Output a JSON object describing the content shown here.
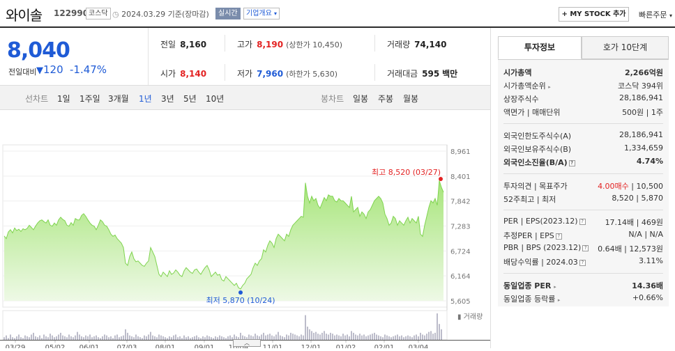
{
  "header": {
    "company_name": "와이솔",
    "code": "122990",
    "market_badge": "코스닥",
    "date_text": "2024.03.29  기준(장마감)",
    "realtime_badge": "실시간",
    "overview_label": "기업개요",
    "mystock_label": "+ MY STOCK 추가",
    "quick_order_label": "빠른주문"
  },
  "price": {
    "current": "8,040",
    "change_label": "전일대비",
    "change": "120",
    "change_pct": "-1.47%"
  },
  "stats": {
    "prev_label": "전일",
    "prev": "8,160",
    "high_label": "고가",
    "high": "8,190",
    "upper_limit": "(상한가 10,450)",
    "volume_label": "거래량",
    "volume": "74,140",
    "open_label": "시가",
    "open": "8,140",
    "low_label": "저가",
    "low": "7,960",
    "lower_limit": "(하한가 5,630)",
    "amount_label": "거래대금",
    "amount": "595",
    "amount_unit": "백만"
  },
  "tabs": {
    "line_label": "선차트",
    "line_tabs": [
      "1일",
      "1주일",
      "3개월",
      "1년",
      "3년",
      "5년",
      "10년"
    ],
    "selected": "1년",
    "candle_label": "봉차트",
    "candle_tabs": [
      "일봉",
      "주봉",
      "월봉"
    ]
  },
  "chart_data": {
    "type": "area",
    "y_ticks": [
      "8,961",
      "8,401",
      "7,842",
      "7,283",
      "6,724",
      "6,164",
      "5,605"
    ],
    "ylim": [
      5605,
      8961
    ],
    "x_ticks": [
      "03/29",
      "05/02",
      "06/01",
      "07/03",
      "08/01",
      "09/01",
      "10/04",
      "11/01",
      "12/01",
      "01/02",
      "02/01",
      "03/04"
    ],
    "high_annotation": "최고 8,520 (03/27)",
    "low_annotation": "최저 5,870 (10/24)",
    "volume_label": "거래량",
    "series": [
      {
        "values": [
          7060,
          7000,
          7150,
          7200,
          7130,
          7240,
          7180,
          7210,
          7160,
          7220,
          7200,
          7230,
          7300,
          7250,
          7200,
          7280,
          7350,
          7400,
          7420,
          7380,
          7350,
          7420,
          7300,
          7280,
          7350,
          7300,
          7420,
          7480,
          7430,
          7400,
          7300,
          7280,
          7360,
          7300,
          7450,
          7420,
          7420,
          7520,
          7560,
          7500,
          7420,
          7350,
          7300,
          7280,
          7200,
          7300,
          7420,
          7380,
          7300,
          7280,
          7200,
          7100,
          7050,
          7080,
          7000,
          6950,
          6900,
          6800,
          6450,
          6400,
          6600,
          6700,
          6550,
          6480,
          6500,
          6450,
          6400,
          6380,
          6450,
          6500,
          6800,
          6700,
          6600,
          6400,
          6200,
          6150,
          6250,
          6200,
          6150,
          6280,
          6200,
          6230,
          6300,
          6250,
          6180,
          6150,
          6280,
          6350,
          6300,
          6250,
          6220,
          6300,
          6320,
          6250,
          6200,
          6280,
          6350,
          6400,
          6300,
          6150,
          6200,
          6250,
          6180,
          6200,
          6080,
          6050,
          6150,
          6100,
          6050,
          6000,
          5950,
          6000,
          5900,
          5870,
          5950,
          6000,
          6100,
          6150,
          6200,
          6350,
          6450,
          6400,
          6500,
          6550,
          6750,
          6700,
          6850,
          6950,
          6900,
          6800,
          7000,
          7100,
          7050,
          7000,
          6950,
          7100,
          7050,
          7200,
          7300,
          7350,
          7400,
          7450,
          7500,
          7480,
          8250,
          7950,
          7800,
          7950,
          7850,
          7900,
          7750,
          7680,
          7800,
          7920,
          7850,
          7980,
          7950,
          7950,
          7850,
          7820,
          7900,
          7850,
          7850,
          7800,
          7750,
          7700,
          7950,
          7600,
          7650,
          7700,
          7500,
          7600,
          7550,
          7450,
          7600,
          7650,
          7750,
          7850,
          7900,
          7950,
          7900,
          7800,
          7550,
          7450,
          7300,
          7350,
          7500,
          7450,
          7300,
          7400,
          7350,
          7300,
          7400,
          7480,
          7350,
          7450,
          7400,
          7350,
          7500,
          7100,
          7050,
          7300,
          7500,
          7700,
          7850,
          7800,
          7900,
          7750,
          8300,
          8150,
          8040
        ]
      }
    ],
    "volume_values": [
      3,
      5,
      2,
      6,
      3,
      2,
      4,
      6,
      3,
      2,
      5,
      4,
      3,
      6,
      8,
      4,
      3,
      5,
      2,
      6,
      4,
      3,
      7,
      5,
      3,
      4,
      6,
      8,
      5,
      4,
      3,
      6,
      4,
      3,
      5,
      9,
      6,
      4,
      3,
      5,
      4,
      6,
      3,
      4,
      5,
      3,
      2,
      4,
      6,
      5,
      3,
      4,
      2,
      5,
      6,
      3,
      4,
      5,
      12,
      8,
      5,
      4,
      3,
      6,
      4,
      3,
      2,
      5,
      4,
      6,
      9,
      5,
      4,
      3,
      6,
      5,
      4,
      3,
      2,
      4,
      3,
      5,
      6,
      3,
      4,
      2,
      5,
      3,
      4,
      2,
      3,
      4,
      5,
      3,
      2,
      4,
      3,
      5,
      4,
      3,
      2,
      4,
      3,
      5,
      4,
      3,
      2,
      4,
      5,
      3,
      6,
      4,
      3,
      8,
      5,
      4,
      3,
      6,
      5,
      4,
      7,
      5,
      4,
      6,
      8,
      5,
      6,
      7,
      5,
      4,
      6,
      9,
      5,
      4,
      3,
      6,
      5,
      8,
      7,
      6,
      5,
      4,
      6,
      5,
      28,
      15,
      12,
      10,
      8,
      9,
      7,
      6,
      8,
      10,
      7,
      6,
      8,
      7,
      5,
      6,
      5,
      4,
      7,
      5,
      6,
      4,
      10,
      8,
      6,
      5,
      7,
      5,
      6,
      4,
      5,
      6,
      7,
      8,
      6,
      5,
      4,
      3,
      6,
      5,
      4,
      3,
      4,
      5,
      6,
      4,
      5,
      3,
      4,
      5,
      4,
      3,
      5,
      6,
      4,
      8,
      6,
      5,
      7,
      9,
      10,
      7,
      8,
      30,
      18,
      12
    ]
  },
  "right": {
    "tab_active": "투자정보",
    "tab_inactive": "호가 10단계",
    "rows": {
      "mcap_k": "시가총액",
      "mcap_v": "2,266억원",
      "mcap_rank_k": "시가총액순위",
      "mcap_rank_v": "코스닥 394위",
      "shares_k": "상장주식수",
      "shares_v": "28,186,941",
      "par_k": "액면가 | 매매단위",
      "par_v": "500원 | 1주",
      "foreign_limit_k": "외국인한도주식수(A)",
      "foreign_limit_v": "28,186,941",
      "foreign_hold_k": "외국인보유주식수(B)",
      "foreign_hold_v": "1,334,659",
      "foreign_rate_k": "외국인소진율(B/A)",
      "foreign_rate_v": "4.74%",
      "opinion_k": "투자의견 | 목표주가",
      "opinion_v1": "4.00매수",
      "opinion_v2": "| 10,500",
      "w52_k": "52주최고 | 최저",
      "w52_v": "8,520 | 5,870",
      "per_k": "PER | EPS(2023.12)",
      "per_v": "17.14배 | 469원",
      "est_per_k": "추정PER | EPS",
      "est_per_v": "N/A | N/A",
      "pbr_k": "PBR | BPS (2023.12)",
      "pbr_v": "0.64배 | 12,573원",
      "div_k": "배당수익률 | 2024.03",
      "div_v": "3.11%",
      "ind_per_k": "동일업종 PER",
      "ind_per_v": "14.36배",
      "ind_chg_k": "동일업종 등락률",
      "ind_chg_v": "+0.66%"
    }
  },
  "colors": {
    "accent_blue": "#1f5bd6",
    "accent_red": "#e32222",
    "area_green": "#7fd34f"
  }
}
